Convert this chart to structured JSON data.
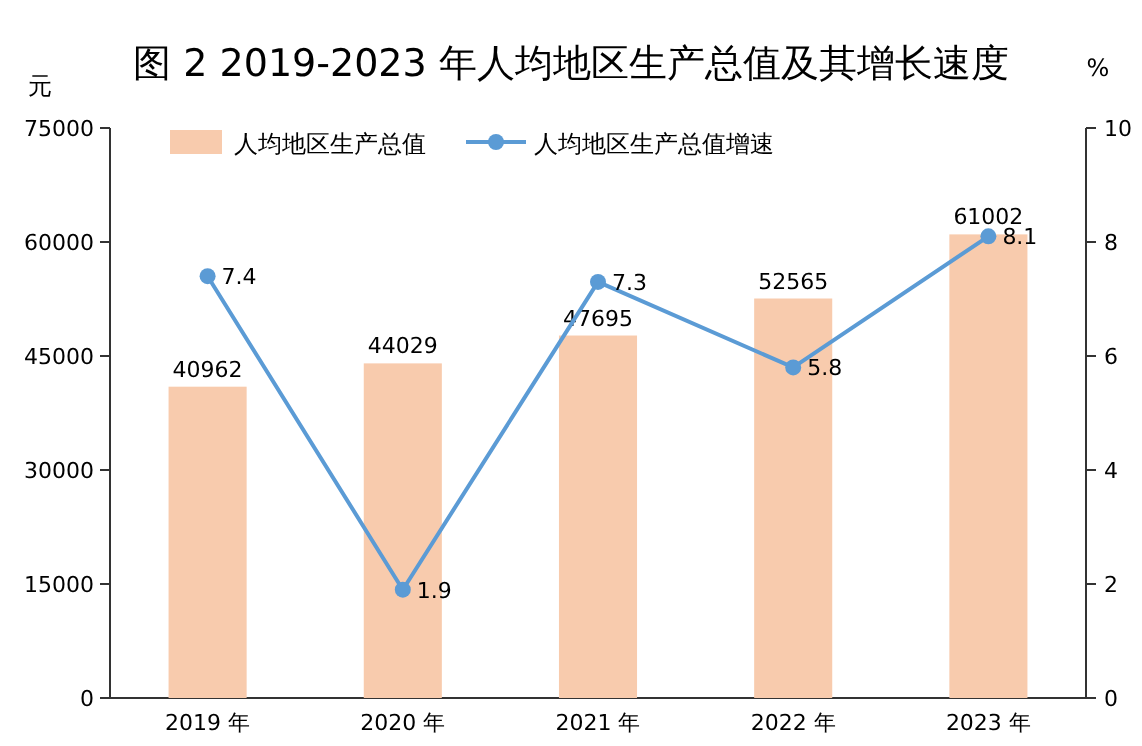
{
  "chart_data": {
    "type": "bar",
    "title": "图 2   2019-2023 年人均地区生产总值及其增长速度",
    "ylabel": "元",
    "y2label": "%",
    "categories": [
      "2019 年",
      "2020 年",
      "2021 年",
      "2022 年",
      "2023 年"
    ],
    "series": [
      {
        "name": "人均地区生产总值",
        "color": "#f8cbad",
        "values": [
          40962,
          44029,
          47695,
          52565,
          61002
        ]
      },
      {
        "name": "人均地区生产总值增速",
        "type": "line",
        "axis": "y2",
        "color": "#5b9bd5",
        "values": [
          7.4,
          1.9,
          7.3,
          5.8,
          8.1
        ]
      }
    ],
    "ylim": [
      0,
      75000
    ],
    "yticks": [
      0,
      15000,
      30000,
      45000,
      60000,
      75000
    ],
    "y2lim": [
      0,
      10
    ],
    "y2ticks": [
      0,
      2,
      4,
      6,
      8,
      10
    ],
    "data_labels": true,
    "legend": "top",
    "marker": "circle",
    "line_style": "solid"
  }
}
